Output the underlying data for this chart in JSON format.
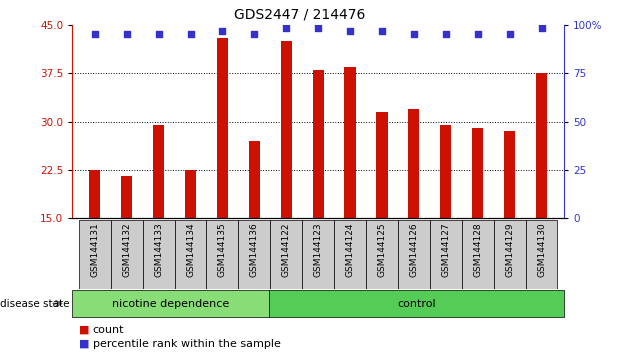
{
  "title": "GDS2447 / 214476",
  "categories": [
    "GSM144131",
    "GSM144132",
    "GSM144133",
    "GSM144134",
    "GSM144135",
    "GSM144136",
    "GSM144122",
    "GSM144123",
    "GSM144124",
    "GSM144125",
    "GSM144126",
    "GSM144127",
    "GSM144128",
    "GSM144129",
    "GSM144130"
  ],
  "bar_values": [
    22.5,
    21.5,
    29.5,
    22.5,
    43.0,
    27.0,
    42.5,
    38.0,
    38.5,
    31.5,
    32.0,
    29.5,
    29.0,
    28.5,
    37.5
  ],
  "dot_values": [
    43.5,
    43.5,
    43.5,
    43.5,
    44.0,
    43.5,
    44.5,
    44.5,
    44.0,
    44.0,
    43.5,
    43.5,
    43.5,
    43.5,
    44.5
  ],
  "bar_color": "#cc1100",
  "dot_color": "#3333cc",
  "ylim_left": [
    15,
    45
  ],
  "ylim_right": [
    0,
    100
  ],
  "yticks_left": [
    15,
    22.5,
    30,
    37.5,
    45
  ],
  "yticks_right": [
    0,
    25,
    50,
    75,
    100
  ],
  "grid_values": [
    22.5,
    30,
    37.5
  ],
  "group1_label": "nicotine dependence",
  "group2_label": "control",
  "group1_count": 6,
  "group2_count": 9,
  "disease_state_label": "disease state",
  "legend_count_label": "count",
  "legend_percentile_label": "percentile rank within the sample",
  "group1_color": "#88dd77",
  "group2_color": "#55cc55",
  "bar_bottom": 15,
  "cell_bg_color": "#cccccc",
  "plot_bg_color": "#ffffff"
}
